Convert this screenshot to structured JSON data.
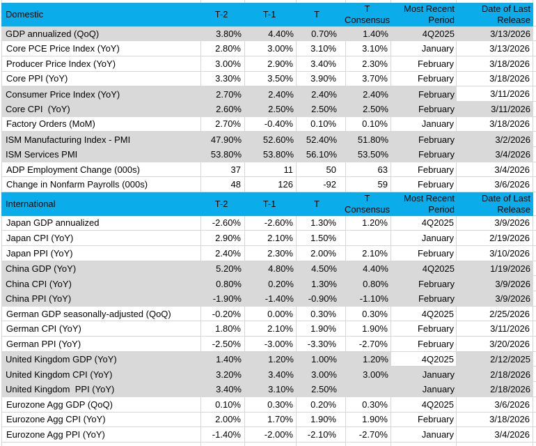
{
  "colors": {
    "header_bg": "#0aade9",
    "band_bg": "#d9d9d9",
    "gridline": "#d6d6d6",
    "text": "#000000"
  },
  "columns": {
    "t2": "T-2",
    "t1": "T-1",
    "t": "T",
    "consensus": [
      "T",
      "Consensus"
    ],
    "period": [
      "Most Recent",
      "Period"
    ],
    "date": [
      "Date of Last",
      "Release"
    ]
  },
  "sections": [
    {
      "title": "Domestic",
      "rows": [
        {
          "label": "GDP annualized (QoQ)",
          "t2": "3.80%",
          "t1": "4.40%",
          "t": "0.70%",
          "consensus": "1.40%",
          "period": "4Q2025",
          "date": "3/13/2026",
          "banded": true
        },
        {
          "label": "Core PCE Price Index (YoY)",
          "t2": "2.80%",
          "t1": "3.00%",
          "t": "3.10%",
          "consensus": "3.10%",
          "period": "January",
          "date": "3/13/2026",
          "banded": false
        },
        {
          "label": "Producer Price Index (YoY)",
          "t2": "3.00%",
          "t1": "2.90%",
          "t": "3.40%",
          "consensus": "2.30%",
          "period": "February",
          "date": "3/18/2026",
          "banded": false
        },
        {
          "label": "Core PPI (YoY)",
          "t2": "3.30%",
          "t1": "3.50%",
          "t": "3.90%",
          "consensus": "3.70%",
          "period": "February",
          "date": "3/18/2026",
          "banded": false
        },
        {
          "label": "Consumer Price Index (YoY)",
          "t2": "2.70%",
          "t1": "2.40%",
          "t": "2.40%",
          "consensus": "2.40%",
          "period": "February",
          "date": "3/11/2026",
          "banded": true,
          "unfilled": "date"
        },
        {
          "label": "Core CPI  (YoY)",
          "t2": "2.60%",
          "t1": "2.50%",
          "t": "2.50%",
          "consensus": "2.50%",
          "period": "February",
          "date": "3/11/2026",
          "banded": true
        },
        {
          "label": "Factory Orders (MoM)",
          "t2": "2.70%",
          "t1": "-0.40%",
          "t": "0.10%",
          "consensus": "0.10%",
          "period": "January",
          "date": "3/18/2026",
          "banded": false
        },
        {
          "label": "ISM Manufacturing Index - PMI",
          "t2": "47.90%",
          "t1": "52.60%",
          "t": "52.40%",
          "consensus": "51.80%",
          "period": "February",
          "date": "3/2/2026",
          "banded": true
        },
        {
          "label": "ISM Services PMI",
          "t2": "53.80%",
          "t1": "53.80%",
          "t": "56.10%",
          "consensus": "53.50%",
          "period": "February",
          "date": "3/4/2026",
          "banded": true
        },
        {
          "label": "ADP Employment Change (000s)",
          "t2": "37",
          "t1": "11",
          "t": "50",
          "consensus": "63",
          "period": "February",
          "date": "3/4/2026",
          "banded": false
        },
        {
          "label": "Change in Nonfarm Payrolls (000s)",
          "t2": "48",
          "t1": "126",
          "t": "-92",
          "consensus": "59",
          "period": "February",
          "date": "3/6/2026",
          "banded": false
        }
      ]
    },
    {
      "title": "International",
      "rows": [
        {
          "label": "Japan GDP annualized",
          "t2": "-2.60%",
          "t1": "-2.60%",
          "t": "1.30%",
          "consensus": "1.20%",
          "period": "4Q2025",
          "date": "3/9/2026",
          "banded": false
        },
        {
          "label": "Japan CPI (YoY)",
          "t2": "2.90%",
          "t1": "2.10%",
          "t": "1.50%",
          "consensus": "",
          "period": "January",
          "date": "2/19/2026",
          "banded": false
        },
        {
          "label": "Japan PPI (YoY)",
          "t2": "2.40%",
          "t1": "2.30%",
          "t": "2.00%",
          "consensus": "2.10%",
          "period": "February",
          "date": "3/10/2026",
          "banded": false
        },
        {
          "label": "China GDP (YoY)",
          "t2": "5.20%",
          "t1": "4.80%",
          "t": "4.50%",
          "consensus": "4.40%",
          "period": "4Q2025",
          "date": "1/19/2026",
          "banded": true
        },
        {
          "label": "China CPI (YoY)",
          "t2": "0.80%",
          "t1": "0.20%",
          "t": "1.30%",
          "consensus": "0.80%",
          "period": "February",
          "date": "3/9/2026",
          "banded": true
        },
        {
          "label": "China PPI (YoY)",
          "t2": "-1.90%",
          "t1": "-1.40%",
          "t": "-0.90%",
          "consensus": "-1.10%",
          "period": "February",
          "date": "3/9/2026",
          "banded": true
        },
        {
          "label": "German GDP seasonally-adjusted (QoQ)",
          "t2": "-0.20%",
          "t1": "0.00%",
          "t": "0.30%",
          "consensus": "0.30%",
          "period": "4Q2025",
          "date": "2/25/2026",
          "banded": false
        },
        {
          "label": "German CPI (YoY)",
          "t2": "1.80%",
          "t1": "2.10%",
          "t": "1.90%",
          "consensus": "1.90%",
          "period": "February",
          "date": "3/11/2026",
          "banded": false
        },
        {
          "label": "German PPI (YoY)",
          "t2": "-2.50%",
          "t1": "-3.00%",
          "t": "-3.30%",
          "consensus": "-2.70%",
          "period": "February",
          "date": "3/20/2026",
          "banded": false
        },
        {
          "label": "United Kingdom GDP (YoY)",
          "t2": "1.40%",
          "t1": "1.20%",
          "t": "1.00%",
          "consensus": "1.20%",
          "period": "4Q2025",
          "date": "2/12/2025",
          "banded": true,
          "unfilled": "period"
        },
        {
          "label": "United Kingdom CPI (YoY)",
          "t2": "3.20%",
          "t1": "3.40%",
          "t": "3.00%",
          "consensus": "3.00%",
          "period": "January",
          "date": "2/18/2026",
          "banded": true
        },
        {
          "label": "United Kingdom  PPI (YoY)",
          "t2": "3.40%",
          "t1": "3.10%",
          "t": "2.50%",
          "consensus": "",
          "period": "January",
          "date": "2/18/2026",
          "banded": true
        },
        {
          "label": "Eurozone Agg GDP (QoQ)",
          "t2": "0.10%",
          "t1": "0.30%",
          "t": "0.20%",
          "consensus": "0.30%",
          "period": "4Q2025",
          "date": "3/6/2026",
          "banded": false
        },
        {
          "label": "Eurozone Agg CPI (YoY)",
          "t2": "2.00%",
          "t1": "1.70%",
          "t": "1.90%",
          "consensus": "1.90%",
          "period": "February",
          "date": "3/18/2026",
          "banded": false
        },
        {
          "label": "Eurozone Agg PPI (YoY)",
          "t2": "-1.40%",
          "t1": "-2.00%",
          "t": "-2.10%",
          "consensus": "-2.70%",
          "period": "January",
          "date": "3/4/2026",
          "banded": false
        }
      ]
    }
  ]
}
